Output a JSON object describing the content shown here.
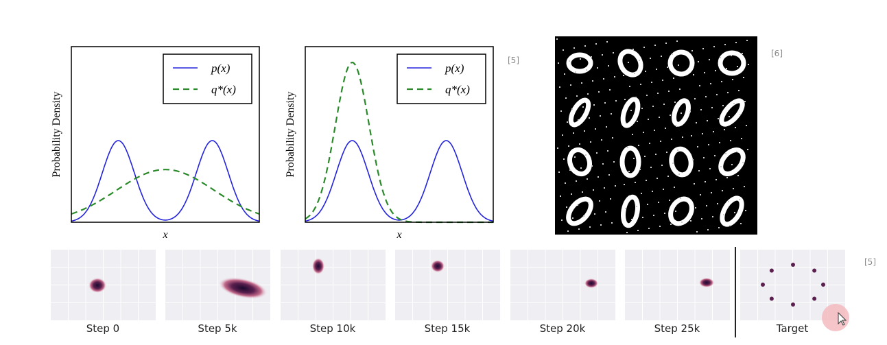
{
  "panels": [
    {
      "y_label": "Probability Density",
      "x_label": "x",
      "legend": [
        "p(x)",
        "q*(x)"
      ]
    },
    {
      "y_label": "Probability Density",
      "x_label": "x",
      "legend": [
        "p(x)",
        "q*(x)"
      ]
    }
  ],
  "citations": [
    "[5]",
    "[6]",
    "[5]"
  ],
  "steps": [
    "Step 0",
    "Step 5k",
    "Step 10k",
    "Step 15k",
    "Step 20k",
    "Step 25k",
    "Target"
  ]
}
